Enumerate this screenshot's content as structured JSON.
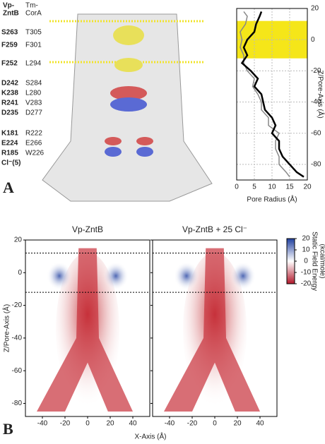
{
  "panel_a": {
    "label": "A",
    "headers": [
      [
        "Vp-",
        "ZntB"
      ],
      [
        "Tm-",
        "CorA"
      ]
    ],
    "rows": [
      [
        "S263",
        "T305"
      ],
      [
        "F259",
        "F301"
      ],
      [
        "F252",
        "L294"
      ],
      [
        "D242",
        "S284"
      ],
      [
        "K238",
        "L280"
      ],
      [
        "R241",
        "V283"
      ],
      [
        "D235",
        "D277"
      ],
      [
        "K181",
        "R222"
      ],
      [
        "E224",
        "E266"
      ],
      [
        "R185",
        "W226"
      ],
      [
        "Cl⁻(5)"
      ]
    ]
  },
  "panel_b": {
    "label": "B",
    "x_label": "X-Axis (Å)"
  },
  "chart_data": [
    {
      "type": "line",
      "x_label": "Pore Radius (Å)",
      "y_label": "Z/Pore-Axis (Å)",
      "xlim": [
        0,
        20
      ],
      "xticks": [
        0,
        5,
        10,
        15,
        20
      ],
      "ylim": [
        -90,
        20
      ],
      "yticks": [
        20,
        0,
        -20,
        -40,
        -60,
        -80
      ],
      "grid": true,
      "band": [
        -12,
        12
      ],
      "band_color": "#f5e619",
      "y": [
        18,
        15,
        10,
        5,
        0,
        -5,
        -10,
        -15,
        -20,
        -25,
        -30,
        -35,
        -40,
        -45,
        -50,
        -55,
        -60,
        -65,
        -70,
        -75,
        -80,
        -85,
        -88
      ],
      "series": [
        {
          "color": "#888888",
          "values": [
            2,
            3,
            2.5,
            1,
            1.5,
            1,
            2,
            2,
            3,
            5,
            4.5,
            6,
            7,
            7,
            9,
            9,
            12,
            11,
            11,
            12,
            12,
            14,
            15
          ]
        },
        {
          "color": "#000000",
          "values": [
            7,
            6.5,
            5.5,
            5,
            3,
            2,
            3,
            1.5,
            4,
            6,
            5,
            7,
            7.5,
            8,
            10,
            11,
            10,
            12,
            12,
            13,
            15,
            17,
            19
          ]
        }
      ]
    },
    {
      "type": "heatmap",
      "title": "Vp-ZntB",
      "y_label": "Z/Pore-Axis (Å)",
      "xlim": [
        -55,
        55
      ],
      "xticks": [
        -40,
        -20,
        0,
        20,
        40
      ],
      "ylim": [
        -88,
        20
      ],
      "yticks": [
        20,
        0,
        -20,
        -40,
        -60,
        -80
      ],
      "dashed_lines": [
        12,
        -12
      ]
    },
    {
      "type": "heatmap",
      "title": "Vp-ZntB + 25 Cl⁻",
      "xlim": [
        -55,
        55
      ],
      "xticks": [
        -40,
        -20,
        0,
        20,
        40
      ],
      "ylim": [
        -88,
        20
      ],
      "yticks": [
        20,
        0,
        -20,
        -40,
        -60,
        -80
      ],
      "dashed_lines": [
        12,
        -12
      ],
      "colorbar": {
        "title": [
          "Static Field Energy",
          "(kcal/mole)"
        ],
        "lim": [
          -20,
          20
        ],
        "ticks": [
          20,
          10,
          0,
          -10,
          -20
        ],
        "colors": [
          "#b2182b",
          "#ffffff",
          "#2140a0"
        ]
      }
    }
  ]
}
